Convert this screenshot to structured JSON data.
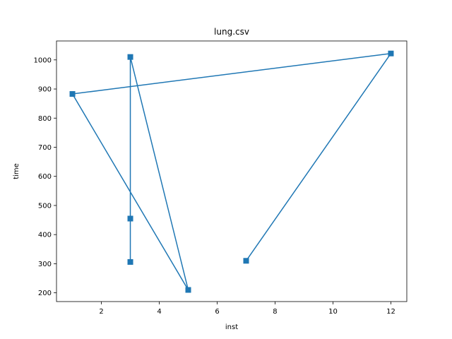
{
  "chart_data": {
    "type": "line",
    "title": "lung.csv",
    "xlabel": "inst",
    "ylabel": "time",
    "xlim": [
      0.45,
      12.55
    ],
    "ylim": [
      170,
      1065
    ],
    "xticks": [
      2,
      4,
      6,
      8,
      10,
      12
    ],
    "yticks": [
      200,
      300,
      400,
      500,
      600,
      700,
      800,
      900,
      1000
    ],
    "grid": false,
    "series": [
      {
        "marker": "square",
        "color": "#1f77b4",
        "x": [
          3,
          3,
          3,
          5,
          1,
          12,
          7
        ],
        "y": [
          306,
          455,
          1010,
          210,
          883,
          1022,
          310
        ]
      }
    ]
  }
}
